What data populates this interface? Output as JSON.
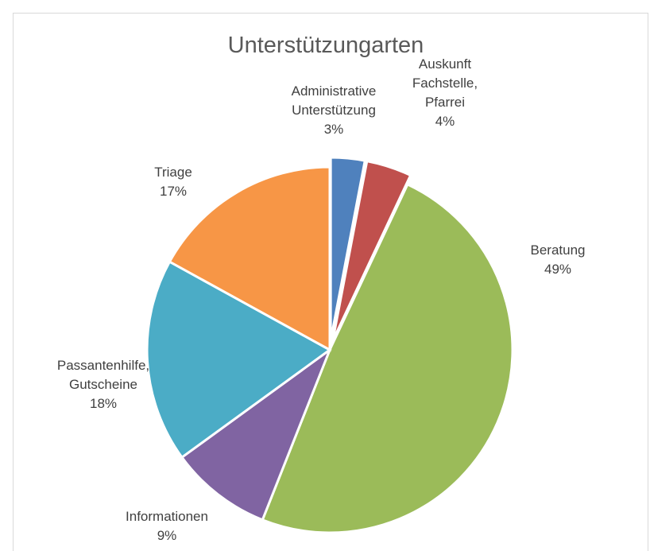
{
  "chart_data": {
    "type": "pie",
    "title": "Unterstützungarten",
    "categories": [
      "Administrative\nUnterstützung",
      "Auskunft\nFachstelle,\nPfarrei",
      "Beratung",
      "Informationen",
      "Passantenhilfe,\nGutscheine",
      "Triage"
    ],
    "values": [
      3,
      4,
      49,
      9,
      18,
      17
    ],
    "value_labels": [
      "3%",
      "4%",
      "49%",
      "9%",
      "18%",
      "17%"
    ],
    "colors": [
      "#4f81bd",
      "#c0504d",
      "#9bbb59",
      "#8064a2",
      "#4bacc6",
      "#f79646"
    ],
    "exploded": [
      true,
      true,
      false,
      false,
      false,
      false
    ]
  }
}
